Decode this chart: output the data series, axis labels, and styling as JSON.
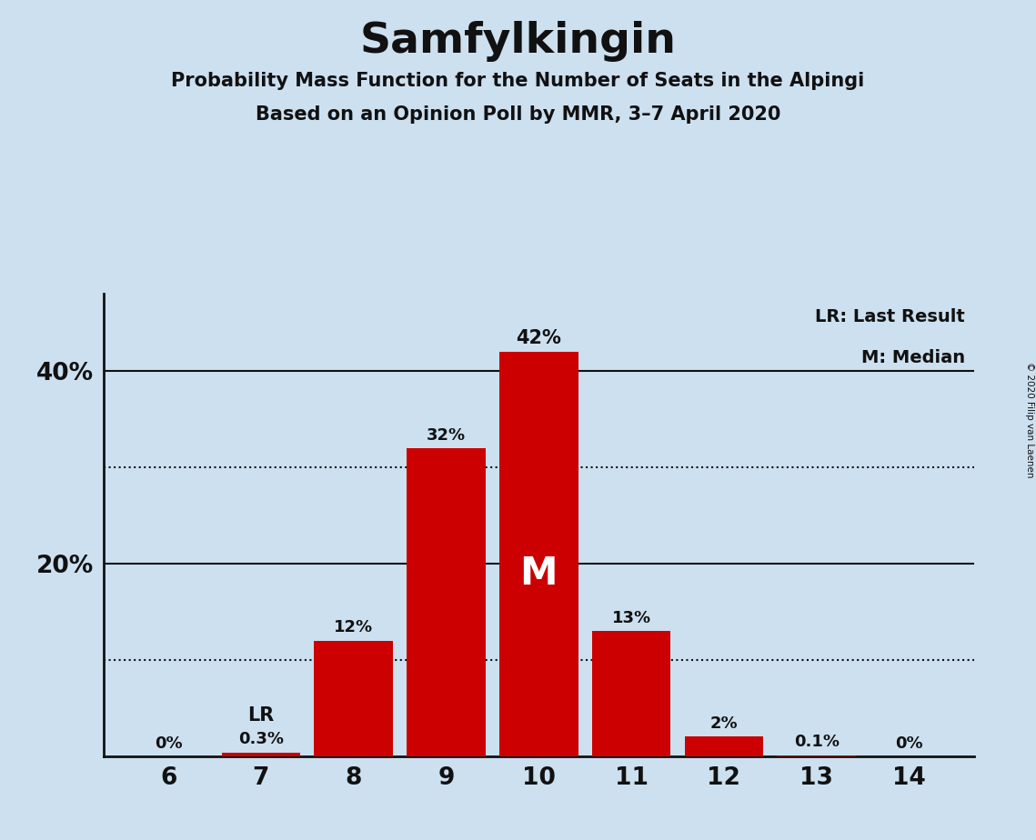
{
  "title": "Samfylkingin",
  "subtitle1": "Probability Mass Function for the Number of Seats in the Alpingi",
  "subtitle2": "Based on an Opinion Poll by MMR, 3–7 April 2020",
  "copyright": "© 2020 Filip van Laenen",
  "seats": [
    6,
    7,
    8,
    9,
    10,
    11,
    12,
    13,
    14
  ],
  "probabilities": [
    0.0,
    0.3,
    12.0,
    32.0,
    42.0,
    13.0,
    2.0,
    0.1,
    0.0
  ],
  "labels": [
    "0%",
    "0.3%",
    "12%",
    "32%",
    "42%",
    "13%",
    "2%",
    "0.1%",
    "0%"
  ],
  "bar_color": "#cc0000",
  "background_color": "#cce0f0",
  "text_color": "#111111",
  "median_seat": 10,
  "lr_seat": 7,
  "legend_lr": "LR: Last Result",
  "legend_m": "M: Median",
  "yticks": [
    20,
    40
  ],
  "ytick_labels": [
    "20%",
    "40%"
  ],
  "solid_lines": [
    20,
    40
  ],
  "dotted_lines": [
    10,
    30
  ],
  "ylim": [
    0,
    48
  ]
}
